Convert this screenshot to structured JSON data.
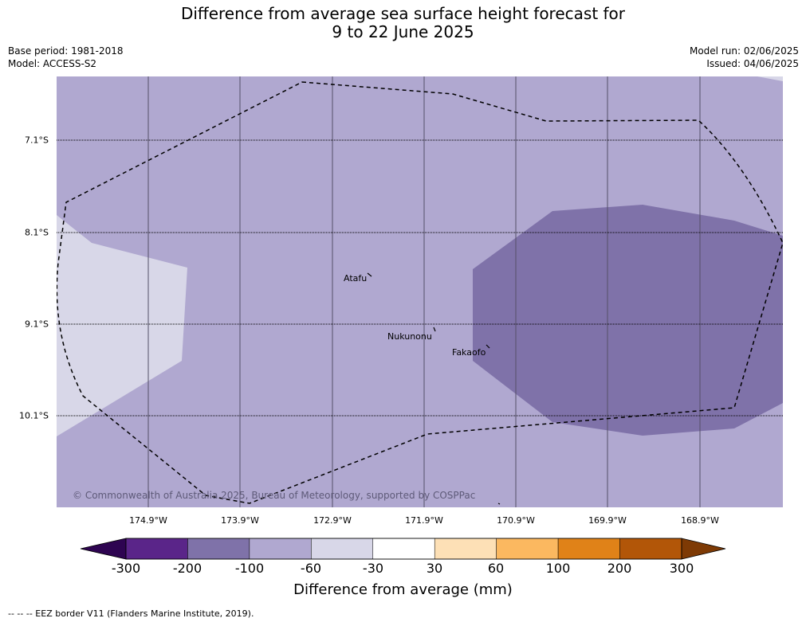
{
  "title": {
    "line1": "Difference from average sea surface height forecast for",
    "line2": "9 to 22 June 2025"
  },
  "meta": {
    "base_period": "Base period: 1981-2018",
    "model": "Model: ACCESS-S2",
    "model_run": "Model run: 02/06/2025",
    "issued": "Issued: 04/06/2025"
  },
  "map": {
    "latitudes": [
      "7.1°S",
      "8.1°S",
      "9.1°S",
      "10.1°S"
    ],
    "longitudes": [
      "174.9°W",
      "173.9°W",
      "172.9°W",
      "171.9°W",
      "170.9°W",
      "169.9°W",
      "168.9°W"
    ],
    "places": {
      "atafu": "Atafu",
      "nukunonu": "Nukunonu",
      "fakaofo": "Fakaofo"
    },
    "copyright": "© Commonwealth of Australia 2025, Bureau of Meteorology, supported by COSPPac",
    "colors": {
      "bin_minus100_minus60": "#b0a8d0",
      "bin_minus200_minus100": "#7f72a9",
      "bin_minus60_minus30": "#d8d7e8"
    }
  },
  "colorbar": {
    "ticks": [
      "-300",
      "-200",
      "-100",
      "-60",
      "-30",
      "30",
      "60",
      "100",
      "200",
      "300"
    ],
    "colors": [
      "#5a2589",
      "#7f72a9",
      "#b0a8d0",
      "#d8d7e8",
      "#ffffff",
      "#fde0b6",
      "#fbb860",
      "#e08218",
      "#b25608"
    ],
    "under_color": "#2e0451",
    "over_color": "#7e3a05",
    "title": "Difference from average (mm)"
  },
  "footer": "--  --  -- EEZ border V11 (Flanders Marine Institute, 2019)."
}
